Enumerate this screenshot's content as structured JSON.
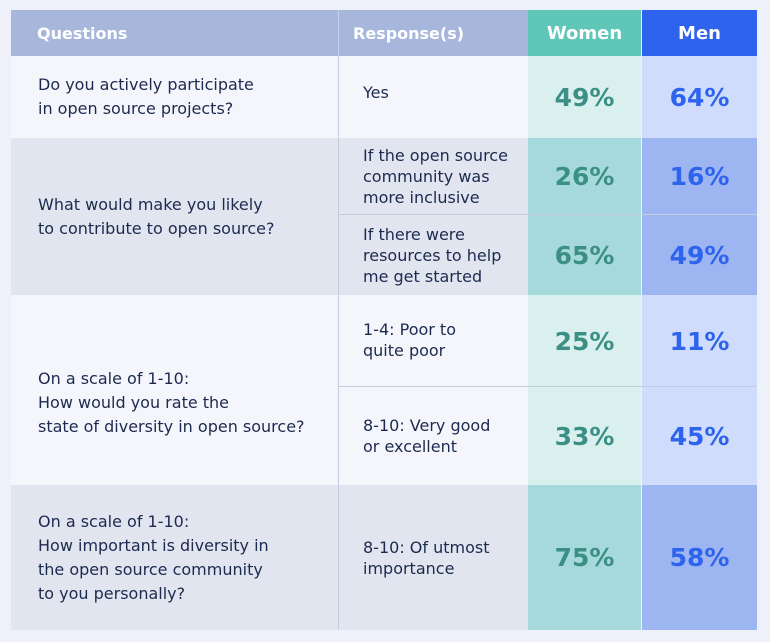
{
  "headers": {
    "questions": "Questions",
    "responses": "Response(s)",
    "women": "Women",
    "men": "Men"
  },
  "questions": [
    {
      "lines": [
        "Do you actively participate",
        "in open source projects?"
      ]
    },
    {
      "lines": [
        "What would make you likely",
        "to contribute to open source?"
      ]
    },
    {
      "lines": [
        "On a scale of 1-10:",
        "How would you rate the",
        "state of diversity in open source?"
      ]
    },
    {
      "lines": [
        "On a scale of 1-10:",
        "How important is diversity in",
        "the open source community",
        "to you personally?"
      ]
    }
  ],
  "rows": [
    {
      "response_lines": [
        "Yes"
      ],
      "women": "49%",
      "men": "64%"
    },
    {
      "response_lines": [
        "If the open source",
        "community was",
        "more inclusive"
      ],
      "women": "26%",
      "men": "16%"
    },
    {
      "response_lines": [
        "If there were",
        "resources to help",
        "me get started"
      ],
      "women": "65%",
      "men": "49%"
    },
    {
      "response_lines": [
        "1-4: Poor to",
        "quite poor"
      ],
      "women": "25%",
      "men": "11%"
    },
    {
      "response_lines": [
        "8-10: Very good",
        "or excellent"
      ],
      "women": "33%",
      "men": "45%"
    },
    {
      "response_lines": [
        "8-10: Of utmost",
        "importance"
      ],
      "women": "75%",
      "men": "58%"
    }
  ],
  "colors": {
    "header_bg": "#a7b7dc",
    "women_header": "#5fc6b8",
    "men_header": "#2e63ee",
    "women_value": "#3b8f84",
    "men_value": "#2e63ee",
    "text": "#1d2a4f"
  },
  "chart_data": {
    "type": "table",
    "columns": [
      "Questions",
      "Response(s)",
      "Women",
      "Men"
    ],
    "rows": [
      [
        "Do you actively participate in open source projects?",
        "Yes",
        "49%",
        "64%"
      ],
      [
        "What would make you likely to contribute to open source?",
        "If the open source community was more inclusive",
        "26%",
        "16%"
      ],
      [
        "What would make you likely to contribute to open source?",
        "If there were resources to help me get started",
        "65%",
        "49%"
      ],
      [
        "On a scale of 1-10: How would you rate the state of diversity in open source?",
        "1-4: Poor to quite poor",
        "25%",
        "11%"
      ],
      [
        "On a scale of 1-10: How would you rate the state of diversity in open source?",
        "8-10: Very good or excellent",
        "33%",
        "45%"
      ],
      [
        "On a scale of 1-10: How important is diversity in the open source community to you personally?",
        "8-10: Of utmost importance",
        "75%",
        "58%"
      ]
    ],
    "series": [
      {
        "name": "Women",
        "values": [
          49,
          26,
          65,
          25,
          33,
          75
        ]
      },
      {
        "name": "Men",
        "values": [
          64,
          16,
          49,
          11,
          45,
          58
        ]
      }
    ]
  }
}
